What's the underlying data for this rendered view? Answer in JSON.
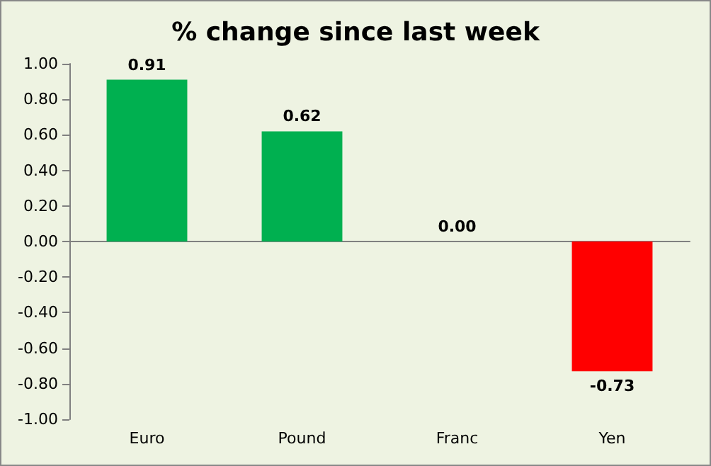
{
  "chart_data": {
    "type": "bar",
    "title": "% change since last week",
    "categories": [
      "Euro",
      "Pound",
      "Franc",
      "Yen"
    ],
    "values": [
      0.91,
      0.62,
      0,
      -0.73
    ],
    "colors": [
      "#00b050",
      "#00b050",
      "#00b050",
      "#ff0000"
    ],
    "value_labels": [
      "0.91",
      "0.62",
      "0.00",
      "-0.73"
    ],
    "ylim": [
      -1,
      1
    ],
    "yticks": [
      {
        "value": -1,
        "label": "-1.00"
      },
      {
        "value": -0.8,
        "label": "-0.80"
      },
      {
        "value": -0.6,
        "label": "-0.60"
      },
      {
        "value": -0.4,
        "label": "-0.40"
      },
      {
        "value": -0.2,
        "label": "-0.20"
      },
      {
        "value": 0,
        "label": "0.00"
      },
      {
        "value": 0.2,
        "label": "0.20"
      },
      {
        "value": 0.4,
        "label": "0.40"
      },
      {
        "value": 0.6,
        "label": "0.60"
      },
      {
        "value": 0.8,
        "label": "0.80"
      },
      {
        "value": 1,
        "label": "1.00"
      }
    ],
    "orientation": "vertical"
  }
}
